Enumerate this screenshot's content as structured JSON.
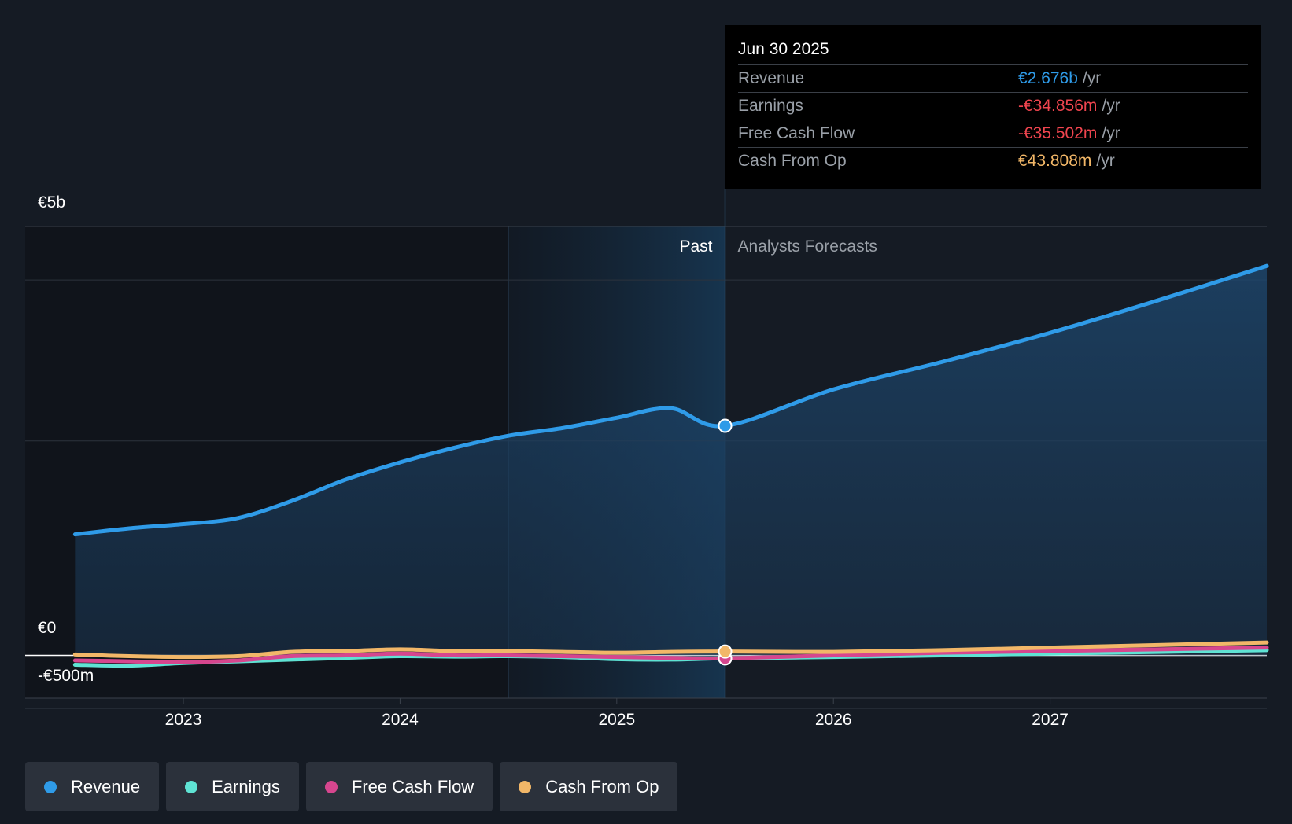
{
  "tooltip": {
    "date": "Jun 30 2025",
    "rows": [
      {
        "label": "Revenue",
        "value": "€2.676b",
        "unit": "/yr",
        "color": "#2f9be8"
      },
      {
        "label": "Earnings",
        "value": "-€34.856m",
        "unit": "/yr",
        "color": "#f0454f"
      },
      {
        "label": "Free Cash Flow",
        "value": "-€35.502m",
        "unit": "/yr",
        "color": "#f0454f"
      },
      {
        "label": "Cash From Op",
        "value": "€43.808m",
        "unit": "/yr",
        "color": "#f2b768"
      }
    ]
  },
  "legend": [
    {
      "label": "Revenue",
      "color": "#2f9be8"
    },
    {
      "label": "Earnings",
      "color": "#5fe3d4"
    },
    {
      "label": "Free Cash Flow",
      "color": "#d6468e"
    },
    {
      "label": "Cash From Op",
      "color": "#f2b768"
    }
  ],
  "chart_data": {
    "type": "line",
    "y_tick_labels": [
      "€5b",
      "€0",
      "-€500m"
    ],
    "y_ticks": [
      5000,
      0,
      -500
    ],
    "ylim": [
      -500,
      5000
    ],
    "x_tick_labels": [
      "2023",
      "2024",
      "2025",
      "2026",
      "2027"
    ],
    "x_ticks": [
      2023,
      2024,
      2025,
      2026,
      2027
    ],
    "xlim": [
      2022.27,
      2028.0
    ],
    "past_label": "Past",
    "forecast_label": "Analysts Forecasts",
    "past_region_start": 2024.5,
    "divider_x": 2025.5,
    "series": [
      {
        "name": "Revenue",
        "color": "#2f9be8",
        "x": [
          2022.5,
          2022.75,
          2023.0,
          2023.25,
          2023.5,
          2023.75,
          2024.0,
          2024.25,
          2024.5,
          2024.75,
          2025.0,
          2025.25,
          2025.5,
          2026.0,
          2026.5,
          2027.0,
          2027.5,
          2028.0
        ],
        "values": [
          1410,
          1480,
          1530,
          1600,
          1800,
          2050,
          2250,
          2420,
          2560,
          2650,
          2770,
          2880,
          2676,
          3100,
          3420,
          3760,
          4140,
          4540
        ]
      },
      {
        "name": "Earnings",
        "color": "#5fe3d4",
        "x": [
          2022.5,
          2022.75,
          2023.0,
          2023.25,
          2023.5,
          2023.75,
          2024.0,
          2024.25,
          2024.5,
          2024.75,
          2025.0,
          2025.25,
          2025.5,
          2026.0,
          2026.5,
          2027.0,
          2027.5,
          2028.0
        ],
        "values": [
          -110,
          -120,
          -90,
          -70,
          -50,
          -30,
          -10,
          -15,
          -10,
          -20,
          -45,
          -50,
          -34.856,
          -20,
          0,
          20,
          40,
          60
        ]
      },
      {
        "name": "Free Cash Flow",
        "color": "#d6468e",
        "x": [
          2022.5,
          2022.75,
          2023.0,
          2023.25,
          2023.5,
          2023.75,
          2024.0,
          2024.25,
          2024.5,
          2024.75,
          2025.0,
          2025.25,
          2025.5,
          2026.0,
          2026.5,
          2027.0,
          2027.5,
          2028.0
        ],
        "values": [
          -60,
          -70,
          -80,
          -60,
          -10,
          0,
          20,
          0,
          0,
          -10,
          -20,
          -30,
          -35.502,
          0,
          30,
          50,
          70,
          90
        ]
      },
      {
        "name": "Cash From Op",
        "color": "#f2b768",
        "x": [
          2022.5,
          2022.75,
          2023.0,
          2023.25,
          2023.5,
          2023.75,
          2024.0,
          2024.25,
          2024.5,
          2024.75,
          2025.0,
          2025.25,
          2025.5,
          2026.0,
          2026.5,
          2027.0,
          2027.5,
          2028.0
        ],
        "values": [
          10,
          -10,
          -20,
          -10,
          40,
          50,
          70,
          50,
          50,
          40,
          30,
          40,
          43.808,
          40,
          60,
          90,
          120,
          150
        ]
      }
    ]
  }
}
